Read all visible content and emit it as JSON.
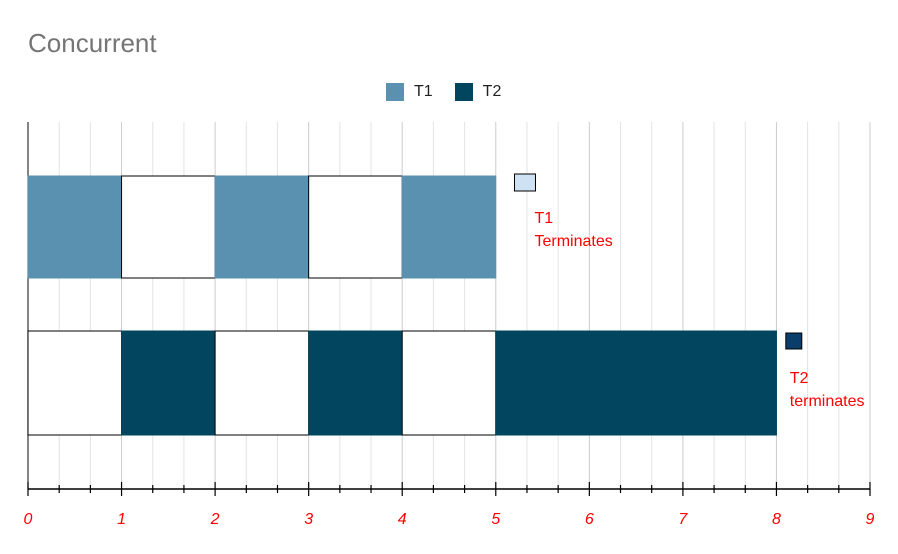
{
  "title": "Concurrent",
  "legend": [
    {
      "name": "T1",
      "color": "#5b91b0"
    },
    {
      "name": "T2",
      "color": "#02455e"
    }
  ],
  "chart_data": {
    "type": "bar",
    "orientation": "horizontal",
    "title": "Concurrent",
    "xlim": [
      0,
      9
    ],
    "x_ticks": [
      "0",
      "1",
      "2",
      "3",
      "4",
      "5",
      "6",
      "7",
      "8",
      "9"
    ],
    "grid": true,
    "legend_position": "top-center",
    "series": [
      {
        "name": "T1",
        "color": "#5b91b0",
        "segments": [
          {
            "start": 0,
            "end": 1,
            "state": "running"
          },
          {
            "start": 1,
            "end": 2,
            "state": "idle"
          },
          {
            "start": 2,
            "end": 3,
            "state": "running"
          },
          {
            "start": 3,
            "end": 4,
            "state": "idle"
          },
          {
            "start": 4,
            "end": 5,
            "state": "running"
          }
        ]
      },
      {
        "name": "T2",
        "color": "#02455e",
        "segments": [
          {
            "start": 0,
            "end": 1,
            "state": "idle"
          },
          {
            "start": 1,
            "end": 2,
            "state": "running"
          },
          {
            "start": 2,
            "end": 3,
            "state": "idle"
          },
          {
            "start": 3,
            "end": 4,
            "state": "running"
          },
          {
            "start": 4,
            "end": 5,
            "state": "idle"
          },
          {
            "start": 5,
            "end": 8,
            "state": "running"
          }
        ]
      }
    ],
    "annotations": [
      {
        "series": "T1",
        "x": 5.2,
        "lines": [
          "T1",
          "Terminates"
        ],
        "marker_color": "#cfe2f3",
        "text_color": "#ff0000"
      },
      {
        "series": "T2",
        "x": 8.1,
        "lines": [
          "T2",
          "terminates"
        ],
        "marker_color": "#0b3d6b",
        "text_color": "#ff0000"
      }
    ],
    "tick_label_color": "#ff0000"
  }
}
